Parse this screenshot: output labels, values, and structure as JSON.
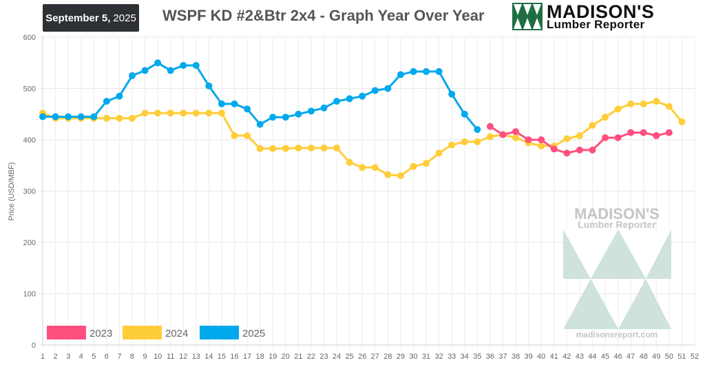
{
  "header": {
    "date_month_day": "September 5,",
    "date_year": "2025",
    "title": "WSPF KD #2&Btr 2x4 - Graph Year Over Year"
  },
  "logo": {
    "brand": "MADISON'S",
    "subtitle": "Lumber Reporter",
    "icon": "triangles-logo-icon",
    "green": "#1f6e43"
  },
  "watermark": {
    "brand": "MADISON'S",
    "subtitle": "Lumber Reporter",
    "url": "madisonsreport.com"
  },
  "chart_data": {
    "type": "line",
    "title": "WSPF KD #2&Btr 2x4 - Graph Year Over Year",
    "xlabel": "",
    "ylabel": "Price (USD/MBF)",
    "ylim": [
      0,
      600
    ],
    "xlim": [
      1,
      52
    ],
    "yticks": [
      0,
      100,
      200,
      300,
      400,
      500,
      600
    ],
    "xticks": [
      1,
      2,
      3,
      4,
      5,
      6,
      7,
      8,
      9,
      10,
      11,
      12,
      13,
      14,
      15,
      16,
      17,
      18,
      19,
      20,
      21,
      22,
      23,
      24,
      25,
      26,
      27,
      28,
      29,
      30,
      31,
      32,
      33,
      34,
      35,
      36,
      37,
      38,
      39,
      40,
      41,
      42,
      43,
      44,
      45,
      46,
      47,
      48,
      49,
      50,
      51,
      52
    ],
    "grid": true,
    "legend_position": "bottom-left",
    "series": [
      {
        "name": "2023",
        "color": "#ff4f7e",
        "x": [
          36,
          37,
          38,
          39,
          40,
          41,
          42,
          43,
          44,
          45,
          46,
          47,
          48,
          49,
          50
        ],
        "y": [
          426,
          410,
          416,
          400,
          400,
          382,
          374,
          380,
          380,
          404,
          404,
          414,
          414,
          408,
          414
        ]
      },
      {
        "name": "2024",
        "color": "#ffcd3a",
        "x": [
          1,
          2,
          3,
          4,
          5,
          6,
          7,
          8,
          9,
          10,
          11,
          12,
          13,
          14,
          15,
          16,
          17,
          18,
          19,
          20,
          21,
          22,
          23,
          24,
          25,
          26,
          27,
          28,
          29,
          30,
          31,
          32,
          33,
          34,
          35,
          36,
          37,
          38,
          39,
          40,
          41,
          42,
          43,
          44,
          45,
          46,
          47,
          48,
          49,
          50,
          51
        ],
        "y": [
          452,
          442,
          442,
          442,
          442,
          442,
          442,
          442,
          452,
          452,
          452,
          452,
          452,
          452,
          452,
          408,
          408,
          383,
          383,
          383,
          384,
          384,
          384,
          384,
          356,
          346,
          346,
          332,
          330,
          348,
          354,
          374,
          390,
          396,
          396,
          406,
          410,
          404,
          394,
          388,
          388,
          402,
          408,
          428,
          444,
          460,
          470,
          470,
          475,
          465,
          435
        ]
      },
      {
        "name": "2025",
        "color": "#00a8ec",
        "x": [
          1,
          2,
          3,
          4,
          5,
          6,
          7,
          8,
          9,
          10,
          11,
          12,
          13,
          14,
          15,
          16,
          17,
          18,
          19,
          20,
          21,
          22,
          23,
          24,
          25,
          26,
          27,
          28,
          29,
          30,
          31,
          32,
          33,
          34,
          35
        ],
        "y": [
          445,
          445,
          445,
          445,
          445,
          475,
          485,
          525,
          535,
          550,
          535,
          545,
          545,
          505,
          470,
          470,
          460,
          430,
          444,
          444,
          450,
          456,
          462,
          475,
          480,
          485,
          496,
          500,
          527,
          533,
          533,
          533,
          489,
          450,
          420
        ]
      }
    ]
  }
}
